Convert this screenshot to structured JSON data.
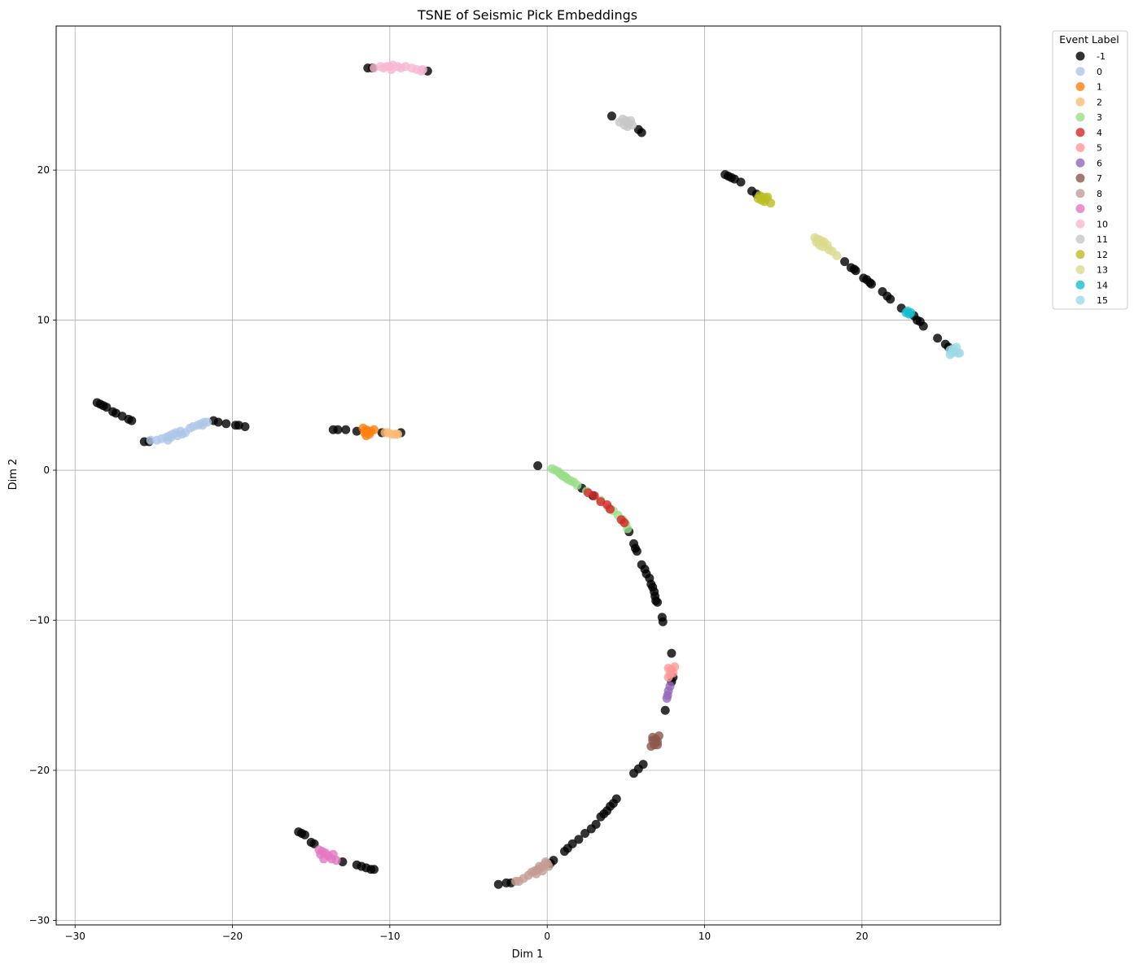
{
  "chart_data": {
    "type": "scatter",
    "title": "TSNE of Seismic Pick Embeddings",
    "xlabel": "Dim 1",
    "ylabel": "Dim 2",
    "xlim": [
      -31.2,
      28.8
    ],
    "ylim": [
      -30.3,
      29.6
    ],
    "xticks": [
      -30,
      -20,
      -10,
      0,
      10,
      20
    ],
    "yticks": [
      -30,
      -20,
      -10,
      0,
      10,
      20
    ],
    "grid": true,
    "legend": {
      "title": "Event Label",
      "placement": "outside-top-right"
    },
    "series": [
      {
        "name": "-1",
        "color": "#000000",
        "points": [
          [
            -28.6,
            4.5
          ],
          [
            -28.4,
            4.4
          ],
          [
            -28.2,
            4.3
          ],
          [
            -28.0,
            4.2
          ],
          [
            -27.6,
            3.9
          ],
          [
            -27.4,
            3.8
          ],
          [
            -27.0,
            3.6
          ],
          [
            -26.6,
            3.4
          ],
          [
            -26.4,
            3.3
          ],
          [
            -25.6,
            1.9
          ],
          [
            -25.3,
            1.9
          ],
          [
            -21.2,
            3.3
          ],
          [
            -20.9,
            3.2
          ],
          [
            -20.4,
            3.1
          ],
          [
            -19.8,
            3.0
          ],
          [
            -19.6,
            3.0
          ],
          [
            -19.2,
            2.9
          ],
          [
            -13.6,
            2.7
          ],
          [
            -13.3,
            2.7
          ],
          [
            -12.8,
            2.7
          ],
          [
            -12.1,
            2.6
          ],
          [
            -10.5,
            2.5
          ],
          [
            -9.3,
            2.5
          ],
          [
            -11.4,
            26.8
          ],
          [
            -11.1,
            26.8
          ],
          [
            -7.6,
            26.6
          ],
          [
            -0.6,
            0.3
          ],
          [
            2.2,
            -1.2
          ],
          [
            2.9,
            -1.7
          ],
          [
            5.2,
            -4.1
          ],
          [
            5.5,
            -4.9
          ],
          [
            5.6,
            -5.2
          ],
          [
            5.7,
            -5.4
          ],
          [
            6.0,
            -6.3
          ],
          [
            6.2,
            -6.6
          ],
          [
            6.3,
            -6.9
          ],
          [
            6.5,
            -7.2
          ],
          [
            6.6,
            -7.6
          ],
          [
            6.7,
            -7.8
          ],
          [
            6.8,
            -8.1
          ],
          [
            6.85,
            -8.4
          ],
          [
            6.9,
            -8.7
          ],
          [
            7.0,
            -8.8
          ],
          [
            7.3,
            -9.8
          ],
          [
            7.35,
            -10.1
          ],
          [
            7.9,
            -12.2
          ],
          [
            8.0,
            -13.8
          ],
          [
            7.9,
            -14.1
          ],
          [
            7.5,
            -16.0
          ],
          [
            6.1,
            -19.6
          ],
          [
            5.8,
            -19.9
          ],
          [
            5.5,
            -20.2
          ],
          [
            4.4,
            -21.9
          ],
          [
            4.2,
            -22.2
          ],
          [
            4.0,
            -22.4
          ],
          [
            3.8,
            -22.7
          ],
          [
            3.6,
            -22.9
          ],
          [
            3.4,
            -23.1
          ],
          [
            3.1,
            -23.6
          ],
          [
            2.8,
            -23.9
          ],
          [
            2.4,
            -24.2
          ],
          [
            2.0,
            -24.6
          ],
          [
            1.6,
            -24.9
          ],
          [
            1.3,
            -25.2
          ],
          [
            1.1,
            -25.4
          ],
          [
            0.4,
            -26.0
          ],
          [
            0.2,
            -26.2
          ],
          [
            -2.3,
            -27.5
          ],
          [
            -2.6,
            -27.5
          ],
          [
            -3.1,
            -27.6
          ],
          [
            -15.8,
            -24.1
          ],
          [
            -15.6,
            -24.2
          ],
          [
            -15.4,
            -24.3
          ],
          [
            -15.0,
            -24.8
          ],
          [
            -14.8,
            -24.9
          ],
          [
            -13.0,
            -26.1
          ],
          [
            -12.1,
            -26.3
          ],
          [
            -11.8,
            -26.4
          ],
          [
            -11.5,
            -26.5
          ],
          [
            -11.2,
            -26.6
          ],
          [
            -11.0,
            -26.6
          ],
          [
            4.1,
            23.6
          ],
          [
            5.8,
            22.7
          ],
          [
            6.0,
            22.5
          ],
          [
            11.3,
            19.7
          ],
          [
            11.5,
            19.6
          ],
          [
            11.7,
            19.5
          ],
          [
            11.9,
            19.4
          ],
          [
            12.3,
            19.2
          ],
          [
            13.0,
            18.6
          ],
          [
            13.3,
            18.4
          ],
          [
            18.9,
            13.9
          ],
          [
            19.3,
            13.5
          ],
          [
            19.5,
            13.4
          ],
          [
            19.6,
            13.3
          ],
          [
            20.1,
            12.8
          ],
          [
            20.3,
            12.7
          ],
          [
            20.5,
            12.5
          ],
          [
            20.6,
            12.4
          ],
          [
            21.3,
            11.9
          ],
          [
            21.6,
            11.6
          ],
          [
            21.8,
            11.4
          ],
          [
            22.5,
            10.8
          ],
          [
            23.3,
            10.3
          ],
          [
            23.5,
            10.0
          ],
          [
            23.7,
            9.9
          ],
          [
            23.9,
            9.6
          ],
          [
            24.8,
            8.8
          ],
          [
            25.3,
            8.4
          ],
          [
            25.5,
            8.2
          ]
        ]
      },
      {
        "name": "0",
        "color": "#aec7e8",
        "points": [
          [
            -25.2,
            2.0
          ],
          [
            -24.8,
            2.0
          ],
          [
            -24.5,
            2.1
          ],
          [
            -24.2,
            2.2
          ],
          [
            -24.0,
            2.3
          ],
          [
            -23.8,
            2.4
          ],
          [
            -23.6,
            2.5
          ],
          [
            -23.3,
            2.6
          ],
          [
            -24.1,
            2.0
          ],
          [
            -23.9,
            2.2
          ],
          [
            -23.5,
            2.3
          ],
          [
            -23.2,
            2.4
          ],
          [
            -23.0,
            2.5
          ],
          [
            -22.7,
            2.8
          ],
          [
            -22.5,
            2.9
          ],
          [
            -22.2,
            3.0
          ],
          [
            -22.0,
            3.1
          ],
          [
            -21.8,
            3.2
          ],
          [
            -21.6,
            3.2
          ],
          [
            -21.9,
            3.0
          ]
        ]
      },
      {
        "name": "1",
        "color": "#ff7f0e",
        "points": [
          [
            -11.6,
            2.5
          ],
          [
            -11.5,
            2.7
          ],
          [
            -11.4,
            2.6
          ],
          [
            -11.2,
            2.6
          ],
          [
            -11.0,
            2.7
          ],
          [
            -11.7,
            2.8
          ],
          [
            -11.3,
            2.4
          ],
          [
            -11.5,
            2.3
          ]
        ]
      },
      {
        "name": "2",
        "color": "#ffbb78",
        "points": [
          [
            -10.3,
            2.5
          ],
          [
            -10.1,
            2.5
          ],
          [
            -9.9,
            2.4
          ],
          [
            -9.7,
            2.4
          ],
          [
            -9.6,
            2.4
          ],
          [
            -9.5,
            2.4
          ]
        ]
      },
      {
        "name": "3",
        "color": "#98df8a",
        "points": [
          [
            0.3,
            0.1
          ],
          [
            0.5,
            0.0
          ],
          [
            0.7,
            -0.1
          ],
          [
            0.8,
            -0.2
          ],
          [
            0.9,
            -0.3
          ],
          [
            1.0,
            -0.4
          ],
          [
            1.1,
            -0.4
          ],
          [
            1.2,
            -0.5
          ],
          [
            1.3,
            -0.6
          ],
          [
            1.5,
            -0.7
          ],
          [
            1.7,
            -0.8
          ],
          [
            1.9,
            -1.0
          ],
          [
            2.5,
            -1.4
          ],
          [
            3.4,
            -2.0
          ],
          [
            3.9,
            -2.5
          ],
          [
            4.2,
            -2.7
          ],
          [
            4.5,
            -3.0
          ],
          [
            4.8,
            -3.3
          ],
          [
            5.0,
            -3.6
          ],
          [
            5.1,
            -3.9
          ]
        ]
      },
      {
        "name": "4",
        "color": "#d62728",
        "points": [
          [
            2.6,
            -1.5
          ],
          [
            3.0,
            -1.7
          ],
          [
            3.4,
            -2.1
          ],
          [
            3.8,
            -2.3
          ],
          [
            4.0,
            -2.6
          ],
          [
            4.7,
            -3.3
          ],
          [
            4.9,
            -3.5
          ]
        ]
      },
      {
        "name": "5",
        "color": "#ff9896",
        "points": [
          [
            7.7,
            -13.2
          ],
          [
            7.9,
            -13.3
          ],
          [
            8.0,
            -13.5
          ],
          [
            7.8,
            -13.6
          ],
          [
            7.7,
            -13.8
          ],
          [
            8.1,
            -13.1
          ]
        ]
      },
      {
        "name": "6",
        "color": "#9467bd",
        "points": [
          [
            7.8,
            -14.4
          ],
          [
            7.7,
            -14.7
          ],
          [
            7.65,
            -15.0
          ],
          [
            7.6,
            -15.2
          ]
        ]
      },
      {
        "name": "7",
        "color": "#8c564b",
        "points": [
          [
            6.7,
            -17.8
          ],
          [
            6.9,
            -17.9
          ],
          [
            7.0,
            -18.1
          ],
          [
            6.8,
            -18.3
          ],
          [
            6.6,
            -18.4
          ],
          [
            7.1,
            -17.7
          ],
          [
            6.7,
            -18.0
          ],
          [
            7.0,
            -18.3
          ]
        ]
      },
      {
        "name": "8",
        "color": "#c49c94",
        "points": [
          [
            -2.0,
            -27.4
          ],
          [
            -1.8,
            -27.4
          ],
          [
            -1.5,
            -27.2
          ],
          [
            -1.2,
            -27.0
          ],
          [
            -1.0,
            -26.8
          ],
          [
            -0.8,
            -26.7
          ],
          [
            -0.6,
            -26.6
          ],
          [
            -0.4,
            -26.5
          ],
          [
            -0.2,
            -26.3
          ],
          [
            0.0,
            -26.2
          ],
          [
            0.1,
            -26.4
          ],
          [
            -0.3,
            -26.7
          ],
          [
            -0.7,
            -26.9
          ],
          [
            -0.1,
            -26.1
          ],
          [
            -0.5,
            -26.4
          ]
        ]
      },
      {
        "name": "9",
        "color": "#e377c2",
        "points": [
          [
            -14.5,
            -25.3
          ],
          [
            -14.3,
            -25.4
          ],
          [
            -14.1,
            -25.5
          ],
          [
            -13.9,
            -25.7
          ],
          [
            -14.2,
            -25.9
          ],
          [
            -13.7,
            -25.9
          ],
          [
            -13.6,
            -25.6
          ],
          [
            -13.4,
            -26.0
          ],
          [
            -14.4,
            -25.6
          ]
        ]
      },
      {
        "name": "10",
        "color": "#f7b6d2",
        "points": [
          [
            -11.0,
            26.8
          ],
          [
            -10.6,
            26.9
          ],
          [
            -10.2,
            26.9
          ],
          [
            -10.0,
            26.9
          ],
          [
            -9.8,
            27.0
          ],
          [
            -9.5,
            26.9
          ],
          [
            -9.3,
            26.8
          ],
          [
            -9.0,
            26.9
          ],
          [
            -8.6,
            26.8
          ],
          [
            -8.3,
            26.7
          ],
          [
            -8.0,
            26.6
          ],
          [
            -7.9,
            26.7
          ],
          [
            -9.9,
            26.7
          ],
          [
            -10.4,
            26.8
          ]
        ]
      },
      {
        "name": "11",
        "color": "#c7c7c7",
        "points": [
          [
            4.6,
            23.2
          ],
          [
            4.8,
            23.4
          ],
          [
            5.0,
            23.3
          ],
          [
            5.2,
            23.1
          ],
          [
            5.4,
            23.0
          ],
          [
            5.1,
            22.9
          ],
          [
            4.9,
            23.0
          ],
          [
            5.3,
            23.3
          ]
        ]
      },
      {
        "name": "12",
        "color": "#bcbd22",
        "points": [
          [
            13.5,
            18.3
          ],
          [
            13.7,
            18.2
          ],
          [
            13.9,
            18.1
          ],
          [
            13.6,
            18.0
          ],
          [
            13.8,
            17.9
          ],
          [
            14.0,
            18.2
          ],
          [
            14.2,
            17.8
          ],
          [
            13.4,
            18.1
          ]
        ]
      },
      {
        "name": "13",
        "color": "#dbdb8d",
        "points": [
          [
            17.0,
            15.5
          ],
          [
            17.2,
            15.4
          ],
          [
            17.4,
            15.3
          ],
          [
            17.6,
            15.2
          ],
          [
            17.8,
            15.0
          ],
          [
            17.5,
            14.9
          ],
          [
            17.3,
            15.0
          ],
          [
            17.9,
            14.7
          ],
          [
            18.1,
            14.6
          ],
          [
            18.4,
            14.3
          ],
          [
            17.1,
            15.2
          ]
        ]
      },
      {
        "name": "14",
        "color": "#17becf",
        "points": [
          [
            22.8,
            10.5
          ],
          [
            23.0,
            10.4
          ],
          [
            22.9,
            10.6
          ],
          [
            23.1,
            10.5
          ]
        ]
      },
      {
        "name": "15",
        "color": "#9edae5",
        "points": [
          [
            25.6,
            8.0
          ],
          [
            25.8,
            8.1
          ],
          [
            26.0,
            8.2
          ],
          [
            25.7,
            7.8
          ],
          [
            25.9,
            7.9
          ],
          [
            26.1,
            7.8
          ],
          [
            25.6,
            7.7
          ],
          [
            26.2,
            7.8
          ]
        ]
      }
    ]
  }
}
